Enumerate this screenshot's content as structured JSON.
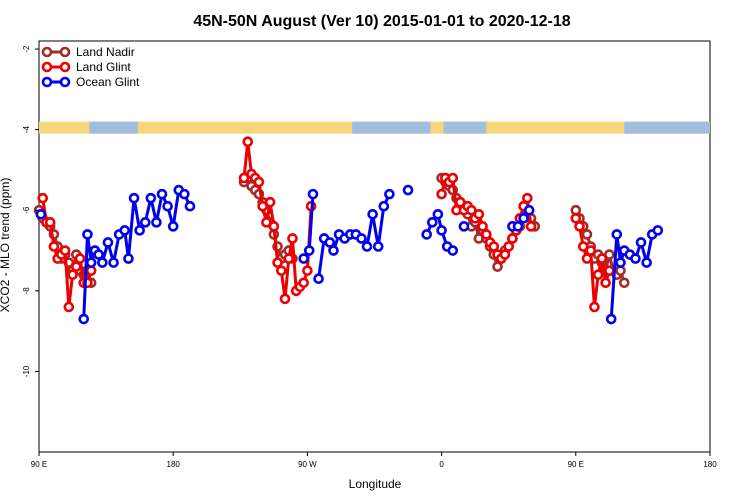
{
  "chart_data": {
    "type": "line",
    "title": "45N-50N August (Ver 10)   2015-01-01 to 2020-12-18",
    "xlabel": "Longitude",
    "ylabel": "XCO2 - MLO trend (ppm)",
    "xlim": [
      90,
      450
    ],
    "ylim": [
      -12,
      -1.8
    ],
    "x_ticks": [
      {
        "value": 90,
        "label": "90 E"
      },
      {
        "value": 162,
        "label": "180"
      },
      {
        "value": 234,
        "label": "90 W"
      },
      {
        "value": 306,
        "label": "0"
      },
      {
        "value": 378,
        "label": "90 E"
      },
      {
        "value": 450,
        "label": "180"
      }
    ],
    "y_ticks": [
      {
        "value": -2,
        "label": "-2"
      },
      {
        "value": -4,
        "label": "-4"
      },
      {
        "value": -6,
        "label": "-6"
      },
      {
        "value": -8,
        "label": "-8"
      },
      {
        "value": -10,
        "label": "-10"
      }
    ],
    "grid": false,
    "legend_position": "top-left",
    "land_band": {
      "y_top": -3.8,
      "y_bottom": -4.1,
      "land_color": "#F5D67A",
      "ocean_color": "#A3BDE0"
    },
    "series": [
      {
        "name": "Land Nadir",
        "color": "#A52A2A",
        "segments": [
          [
            [
              90,
              -6.0
            ],
            [
              92,
              -6.2
            ],
            [
              94,
              -6.3
            ],
            [
              96,
              -6.4
            ],
            [
              98,
              -6.6
            ],
            [
              100,
              -6.9
            ],
            [
              102,
              -7.2
            ],
            [
              104,
              -7.1
            ],
            [
              106,
              -7.3
            ],
            [
              108,
              -7.5
            ],
            [
              110,
              -7.1
            ],
            [
              112,
              -7.5
            ],
            [
              114,
              -7.6
            ],
            [
              116,
              -7.5
            ],
            [
              118,
              -7.8
            ]
          ],
          [
            [
              200,
              -5.3
            ],
            [
              202,
              -5.2
            ],
            [
              204,
              -5.4
            ],
            [
              206,
              -5.5
            ],
            [
              208,
              -5.6
            ],
            [
              210,
              -5.8
            ],
            [
              212,
              -6.0
            ],
            [
              214,
              -6.3
            ],
            [
              216,
              -6.6
            ],
            [
              218,
              -6.9
            ],
            [
              220,
              -7.2
            ],
            [
              222,
              -7.1
            ],
            [
              224,
              -7.0
            ],
            [
              226,
              -7.2
            ]
          ],
          [
            [
              306,
              -5.2
            ],
            [
              308,
              -5.3
            ],
            [
              310,
              -5.4
            ],
            [
              312,
              -5.5
            ],
            [
              314,
              -5.7
            ],
            [
              316,
              -5.8
            ],
            [
              318,
              -5.9
            ],
            [
              320,
              -6.1
            ],
            [
              322,
              -6.4
            ],
            [
              324,
              -6.3
            ],
            [
              326,
              -6.7
            ],
            [
              328,
              -6.5
            ],
            [
              330,
              -6.7
            ],
            [
              332,
              -6.9
            ],
            [
              334,
              -7.1
            ],
            [
              336,
              -7.4
            ],
            [
              338,
              -7.2
            ],
            [
              340,
              -7.0
            ],
            [
              342,
              -6.9
            ],
            [
              344,
              -6.7
            ],
            [
              346,
              -6.5
            ],
            [
              348,
              -6.4
            ],
            [
              350,
              -6.2
            ],
            [
              352,
              -6.0
            ],
            [
              354,
              -6.2
            ],
            [
              356,
              -6.4
            ]
          ],
          [
            [
              378,
              -6.0
            ],
            [
              380,
              -6.2
            ],
            [
              382,
              -6.4
            ],
            [
              384,
              -6.6
            ],
            [
              386,
              -6.9
            ],
            [
              388,
              -7.2
            ],
            [
              390,
              -7.1
            ],
            [
              392,
              -7.3
            ],
            [
              394,
              -7.5
            ],
            [
              396,
              -7.1
            ],
            [
              398,
              -7.5
            ],
            [
              400,
              -7.6
            ],
            [
              402,
              -7.5
            ],
            [
              404,
              -7.8
            ]
          ]
        ]
      },
      {
        "name": "Land Glint",
        "color": "#EE0000",
        "segments": [
          [
            [
              92,
              -5.7
            ],
            [
              94,
              -6.3
            ],
            [
              96,
              -6.3
            ],
            [
              98,
              -6.9
            ],
            [
              100,
              -7.2
            ],
            [
              102,
              -7.1
            ],
            [
              104,
              -7.0
            ],
            [
              106,
              -8.4
            ],
            [
              108,
              -7.6
            ],
            [
              110,
              -7.4
            ],
            [
              112,
              -7.2
            ],
            [
              114,
              -7.8
            ],
            [
              116,
              -7.8
            ],
            [
              118,
              -7.5
            ]
          ],
          [
            [
              200,
              -5.2
            ],
            [
              202,
              -4.3
            ],
            [
              204,
              -5.1
            ],
            [
              206,
              -5.2
            ],
            [
              208,
              -5.3
            ],
            [
              210,
              -5.9
            ],
            [
              212,
              -6.3
            ],
            [
              214,
              -5.8
            ],
            [
              216,
              -6.4
            ],
            [
              218,
              -7.3
            ],
            [
              220,
              -7.5
            ],
            [
              222,
              -8.2
            ],
            [
              224,
              -7.2
            ],
            [
              226,
              -6.7
            ],
            [
              228,
              -8.0
            ],
            [
              230,
              -7.9
            ],
            [
              232,
              -7.8
            ],
            [
              234,
              -7.5
            ],
            [
              236,
              -5.9
            ]
          ],
          [
            [
              306,
              -5.6
            ],
            [
              308,
              -5.2
            ],
            [
              310,
              -5.3
            ],
            [
              312,
              -5.2
            ],
            [
              314,
              -6.0
            ],
            [
              316,
              -5.8
            ],
            [
              318,
              -6.0
            ],
            [
              320,
              -5.9
            ],
            [
              322,
              -6.0
            ],
            [
              324,
              -6.2
            ],
            [
              326,
              -6.1
            ],
            [
              328,
              -6.4
            ],
            [
              330,
              -6.6
            ],
            [
              332,
              -6.8
            ],
            [
              334,
              -6.9
            ],
            [
              336,
              -7.1
            ],
            [
              338,
              -7.2
            ],
            [
              340,
              -7.1
            ],
            [
              342,
              -6.9
            ],
            [
              344,
              -6.7
            ],
            [
              346,
              -6.5
            ],
            [
              348,
              -6.2
            ],
            [
              350,
              -5.9
            ],
            [
              352,
              -5.7
            ],
            [
              354,
              -6.4
            ]
          ],
          [
            [
              378,
              -6.2
            ],
            [
              380,
              -6.4
            ],
            [
              382,
              -6.9
            ],
            [
              384,
              -7.2
            ],
            [
              386,
              -7.0
            ],
            [
              388,
              -8.4
            ],
            [
              390,
              -7.6
            ],
            [
              392,
              -7.2
            ],
            [
              394,
              -7.8
            ],
            [
              396,
              -7.5
            ]
          ]
        ]
      },
      {
        "name": "Ocean Glint",
        "color": "#0000EE",
        "segments": [
          [
            [
              91,
              -6.1
            ]
          ],
          [
            [
              114,
              -8.7
            ],
            [
              116,
              -6.6
            ],
            [
              118,
              -7.3
            ],
            [
              120,
              -7.0
            ],
            [
              122,
              -7.1
            ],
            [
              124,
              -7.3
            ],
            [
              127,
              -6.8
            ],
            [
              130,
              -7.3
            ],
            [
              133,
              -6.6
            ],
            [
              136,
              -6.5
            ],
            [
              138,
              -7.2
            ],
            [
              141,
              -5.7
            ],
            [
              144,
              -6.5
            ],
            [
              147,
              -6.3
            ],
            [
              150,
              -5.7
            ],
            [
              153,
              -6.3
            ],
            [
              156,
              -5.6
            ],
            [
              159,
              -5.9
            ],
            [
              162,
              -6.4
            ],
            [
              165,
              -5.5
            ],
            [
              168,
              -5.6
            ],
            [
              171,
              -5.9
            ]
          ],
          [
            [
              232,
              -7.2
            ],
            [
              235,
              -7.0
            ],
            [
              237,
              -5.6
            ]
          ],
          [
            [
              240,
              -7.7
            ],
            [
              243,
              -6.7
            ],
            [
              246,
              -6.8
            ],
            [
              248,
              -7.0
            ],
            [
              251,
              -6.6
            ],
            [
              254,
              -6.7
            ],
            [
              257,
              -6.6
            ],
            [
              260,
              -6.6
            ],
            [
              263,
              -6.7
            ],
            [
              266,
              -6.9
            ],
            [
              269,
              -6.1
            ],
            [
              272,
              -6.9
            ],
            [
              275,
              -5.9
            ],
            [
              278,
              -5.6
            ]
          ],
          [
            [
              288,
              -5.5
            ]
          ],
          [
            [
              298,
              -6.6
            ],
            [
              301,
              -6.3
            ],
            [
              304,
              -6.1
            ],
            [
              306,
              -6.5
            ],
            [
              309,
              -6.9
            ],
            [
              312,
              -7.0
            ]
          ],
          [
            [
              318,
              -6.4
            ]
          ],
          [
            [
              344,
              -6.4
            ],
            [
              347,
              -6.4
            ],
            [
              350,
              -6.2
            ],
            [
              353,
              -6.0
            ]
          ],
          [
            [
              397,
              -8.7
            ],
            [
              400,
              -6.6
            ],
            [
              402,
              -7.3
            ],
            [
              404,
              -7.0
            ],
            [
              407,
              -7.1
            ],
            [
              410,
              -7.2
            ],
            [
              413,
              -6.8
            ],
            [
              416,
              -7.3
            ],
            [
              419,
              -6.6
            ],
            [
              422,
              -6.5
            ]
          ]
        ]
      }
    ]
  }
}
